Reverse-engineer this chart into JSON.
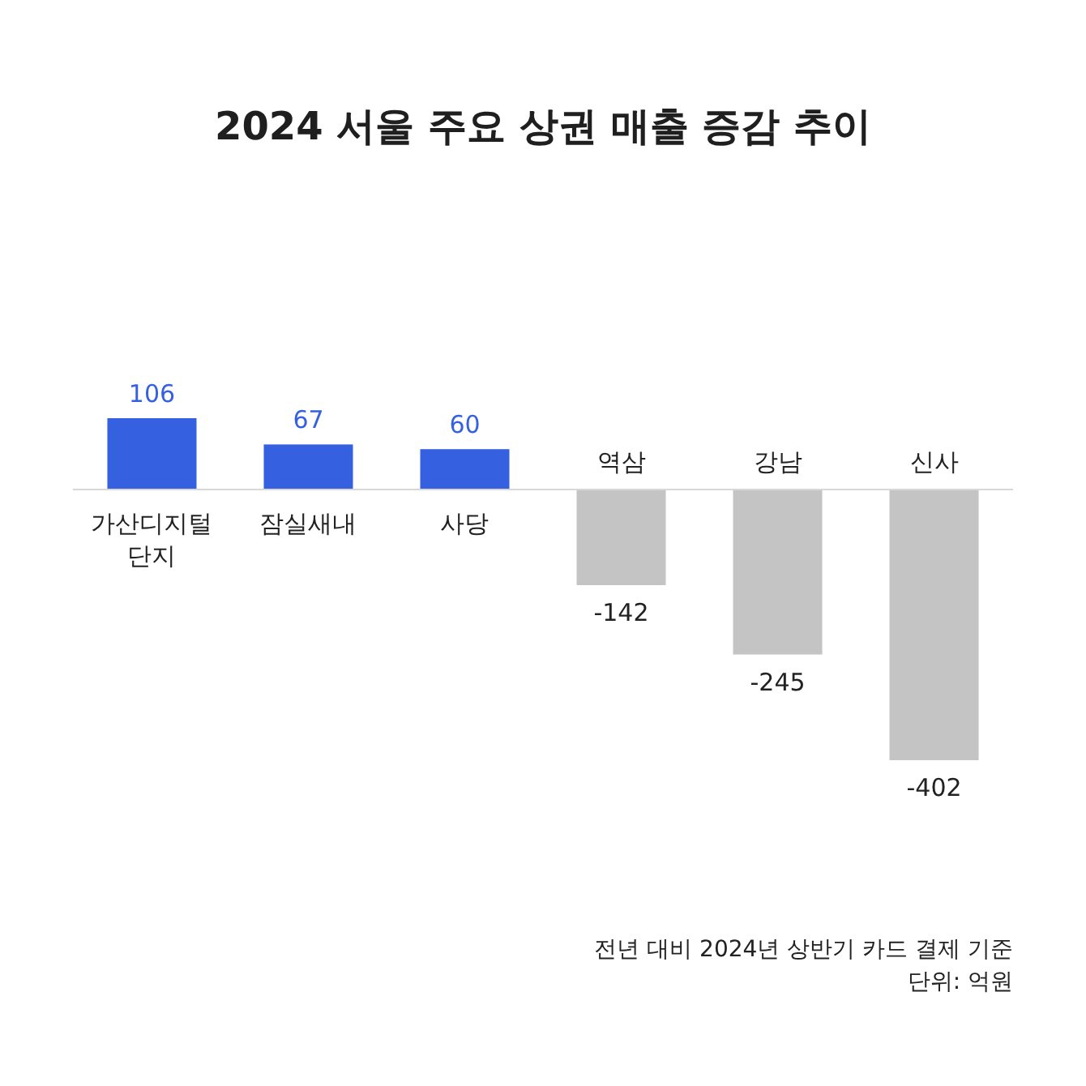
{
  "chart_data": {
    "type": "bar",
    "title": "2024 서울 주요 상권 매출 증감 추이",
    "categories": [
      "가산디지털단지",
      "잠실새내",
      "사당",
      "역삼",
      "강남",
      "신사"
    ],
    "values": [
      106,
      67,
      60,
      -142,
      -245,
      -402
    ],
    "colors": [
      "#3560e0",
      "#3560e0",
      "#3560e0",
      "#c4c4c4",
      "#c4c4c4",
      "#c4c4c4"
    ],
    "data_labels": true,
    "annotations": [
      "전년 대비 2024년 상반기 카드 결제 기준",
      "단위: 억원"
    ]
  }
}
